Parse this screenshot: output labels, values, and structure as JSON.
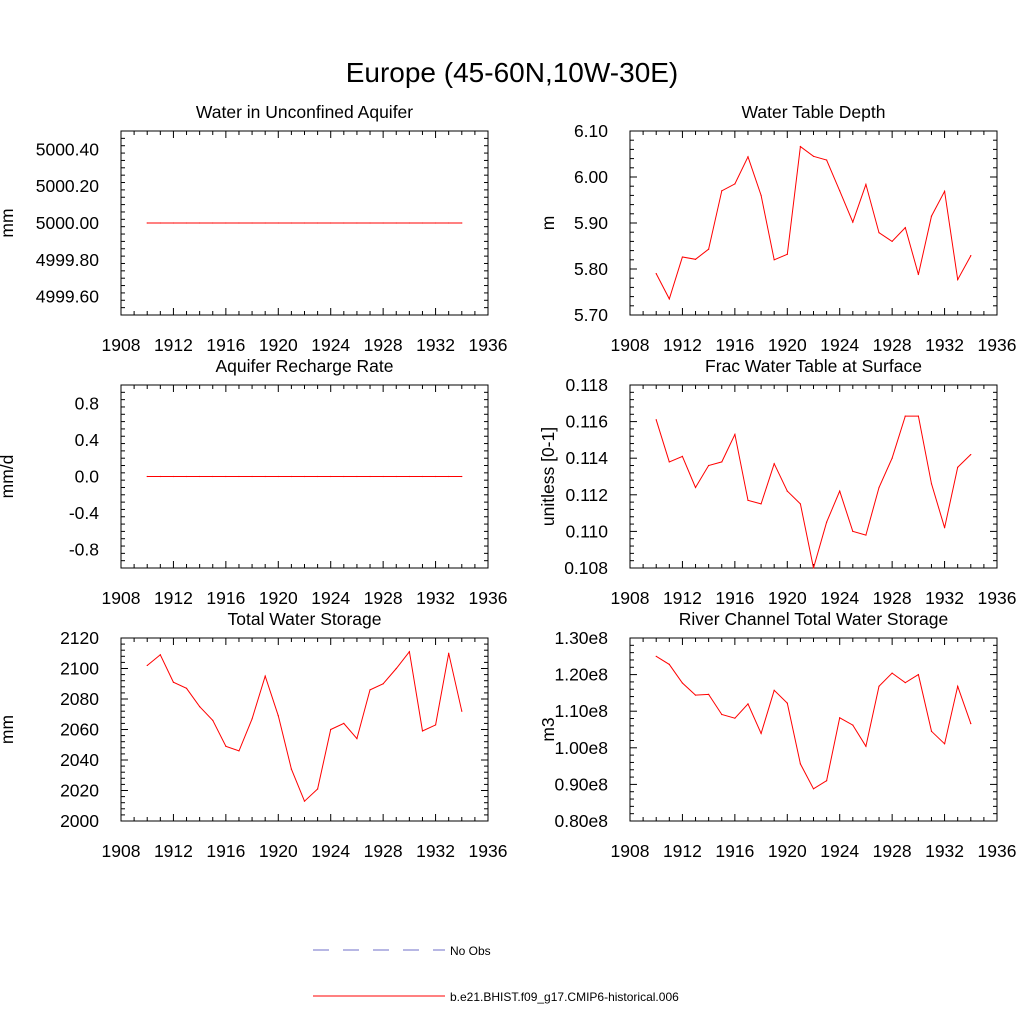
{
  "figure": {
    "title": "Europe (45-60N,10W-30E)"
  },
  "legend": {
    "entries": [
      {
        "label": "No Obs",
        "color": "#6f6fc8",
        "dash": "dashed"
      },
      {
        "label": "b.e21.BHIST.f09_g17.CMIP6-historical.006",
        "color": "#ff0000",
        "dash": "solid"
      }
    ]
  },
  "colors": {
    "series": "#ff0000",
    "axis": "#000000"
  },
  "chart_data": [
    {
      "type": "line",
      "title": "Water in Unconfined Aquifer",
      "xlabel": "",
      "ylabel": "mm",
      "xlim": [
        1908,
        1936
      ],
      "ylim": [
        4999.5,
        5000.5
      ],
      "xticks": [
        1908,
        1912,
        1916,
        1920,
        1924,
        1928,
        1932,
        1936
      ],
      "xtick_labels": [
        "1908",
        "1912",
        "1916",
        "1920",
        "1924",
        "1928",
        "1932",
        "1936"
      ],
      "yticks": [
        4999.6,
        4999.8,
        5000.0,
        5000.2,
        5000.4
      ],
      "ytick_labels": [
        "4999.60",
        "4999.80",
        "5000.00",
        "5000.20",
        "5000.40"
      ],
      "series": [
        {
          "name": "b.e21.BHIST.f09_g17.CMIP6-historical.006",
          "color": "#ff0000",
          "x": [
            1910,
            1911,
            1912,
            1913,
            1914,
            1915,
            1916,
            1917,
            1918,
            1919,
            1920,
            1921,
            1922,
            1923,
            1924,
            1925,
            1926,
            1927,
            1928,
            1929,
            1930,
            1931,
            1932,
            1933,
            1934
          ],
          "y": [
            5000,
            5000,
            5000,
            5000,
            5000,
            5000,
            5000,
            5000,
            5000,
            5000,
            5000,
            5000,
            5000,
            5000,
            5000,
            5000,
            5000,
            5000,
            5000,
            5000,
            5000,
            5000,
            5000,
            5000,
            5000
          ]
        }
      ]
    },
    {
      "type": "line",
      "title": "Water Table Depth",
      "xlabel": "",
      "ylabel": "m",
      "xlim": [
        1908,
        1936
      ],
      "ylim": [
        5.7,
        6.1
      ],
      "xticks": [
        1908,
        1912,
        1916,
        1920,
        1924,
        1928,
        1932,
        1936
      ],
      "xtick_labels": [
        "1908",
        "1912",
        "1916",
        "1920",
        "1924",
        "1928",
        "1932",
        "1936"
      ],
      "yticks": [
        5.7,
        5.8,
        5.9,
        6.0,
        6.1
      ],
      "ytick_labels": [
        "5.70",
        "5.80",
        "5.90",
        "6.00",
        "6.10"
      ],
      "series": [
        {
          "name": "b.e21.BHIST.f09_g17.CMIP6-historical.006",
          "color": "#ff0000",
          "x": [
            1910,
            1911,
            1912,
            1913,
            1914,
            1915,
            1916,
            1917,
            1918,
            1919,
            1920,
            1921,
            1922,
            1923,
            1924,
            1925,
            1926,
            1927,
            1928,
            1929,
            1930,
            1931,
            1932,
            1933,
            1934
          ],
          "y": [
            5.79,
            5.735,
            5.826,
            5.821,
            5.843,
            5.97,
            5.985,
            6.044,
            5.96,
            5.82,
            5.832,
            6.066,
            6.045,
            6.037,
            5.97,
            5.902,
            5.984,
            5.879,
            5.86,
            5.89,
            5.788,
            5.915,
            5.969,
            5.777,
            5.829
          ]
        }
      ]
    },
    {
      "type": "line",
      "title": "Aquifer Recharge Rate",
      "xlabel": "",
      "ylabel": "mm/d",
      "xlim": [
        1908,
        1936
      ],
      "ylim": [
        -1.0,
        1.0
      ],
      "xticks": [
        1908,
        1912,
        1916,
        1920,
        1924,
        1928,
        1932,
        1936
      ],
      "xtick_labels": [
        "1908",
        "1912",
        "1916",
        "1920",
        "1924",
        "1928",
        "1932",
        "1936"
      ],
      "yticks": [
        -0.8,
        -0.4,
        0.0,
        0.4,
        0.8
      ],
      "ytick_labels": [
        "-0.8",
        "-0.4",
        "0.0",
        "0.4",
        "0.8"
      ],
      "series": [
        {
          "name": "b.e21.BHIST.f09_g17.CMIP6-historical.006",
          "color": "#ff0000",
          "x": [
            1910,
            1911,
            1912,
            1913,
            1914,
            1915,
            1916,
            1917,
            1918,
            1919,
            1920,
            1921,
            1922,
            1923,
            1924,
            1925,
            1926,
            1927,
            1928,
            1929,
            1930,
            1931,
            1932,
            1933,
            1934
          ],
          "y": [
            0,
            0,
            0,
            0,
            0,
            0,
            0,
            0,
            0,
            0,
            0,
            0,
            0,
            0,
            0,
            0,
            0,
            0,
            0,
            0,
            0,
            0,
            0,
            0,
            0
          ]
        }
      ]
    },
    {
      "type": "line",
      "title": "Frac Water Table at Surface",
      "xlabel": "",
      "ylabel": "unitless [0-1]",
      "xlim": [
        1908,
        1936
      ],
      "ylim": [
        0.108,
        0.118
      ],
      "xticks": [
        1908,
        1912,
        1916,
        1920,
        1924,
        1928,
        1932,
        1936
      ],
      "xtick_labels": [
        "1908",
        "1912",
        "1916",
        "1920",
        "1924",
        "1928",
        "1932",
        "1936"
      ],
      "yticks": [
        0.108,
        0.11,
        0.112,
        0.114,
        0.116,
        0.118
      ],
      "ytick_labels": [
        "0.108",
        "0.110",
        "0.112",
        "0.114",
        "0.116",
        "0.118"
      ],
      "series": [
        {
          "name": "b.e21.BHIST.f09_g17.CMIP6-historical.006",
          "color": "#ff0000",
          "x": [
            1910,
            1911,
            1912,
            1913,
            1914,
            1915,
            1916,
            1917,
            1918,
            1919,
            1920,
            1921,
            1922,
            1923,
            1924,
            1925,
            1926,
            1927,
            1928,
            1929,
            1930,
            1931,
            1932,
            1933,
            1934
          ],
          "y": [
            0.1161,
            0.1138,
            0.1141,
            0.1124,
            0.1136,
            0.1138,
            0.1153,
            0.1117,
            0.1115,
            0.1137,
            0.1122,
            0.1115,
            0.108,
            0.1105,
            0.1122,
            0.11,
            0.1098,
            0.1124,
            0.114,
            0.1163,
            0.1163,
            0.1126,
            0.1102,
            0.1135,
            0.1142
          ]
        }
      ]
    },
    {
      "type": "line",
      "title": "Total Water Storage",
      "xlabel": "",
      "ylabel": "mm",
      "xlim": [
        1908,
        1936
      ],
      "ylim": [
        2000,
        2120
      ],
      "xticks": [
        1908,
        1912,
        1916,
        1920,
        1924,
        1928,
        1932,
        1936
      ],
      "xtick_labels": [
        "1908",
        "1912",
        "1916",
        "1920",
        "1924",
        "1928",
        "1932",
        "1936"
      ],
      "yticks": [
        2000,
        2020,
        2040,
        2060,
        2080,
        2100,
        2120
      ],
      "ytick_labels": [
        "2000",
        "2020",
        "2040",
        "2060",
        "2080",
        "2100",
        "2120"
      ],
      "series": [
        {
          "name": "b.e21.BHIST.f09_g17.CMIP6-historical.006",
          "color": "#ff0000",
          "x": [
            1910,
            1911,
            1912,
            1913,
            1914,
            1915,
            1916,
            1917,
            1918,
            1919,
            1920,
            1921,
            1922,
            1923,
            1924,
            1925,
            1926,
            1927,
            1928,
            1929,
            1930,
            1931,
            1932,
            1933,
            1934
          ],
          "y": [
            2102,
            2109,
            2091,
            2087,
            2075,
            2066,
            2049,
            2046,
            2067,
            2095,
            2069,
            2034,
            2013,
            2021,
            2060,
            2064,
            2054,
            2086,
            2090,
            2100,
            2111,
            2059,
            2063,
            2110,
            2072
          ]
        }
      ]
    },
    {
      "type": "line",
      "title": "River Channel Total Water Storage",
      "xlabel": "",
      "ylabel": "m3",
      "xlim": [
        1908,
        1936
      ],
      "ylim": [
        80000000.0,
        130000000.0
      ],
      "xticks": [
        1908,
        1912,
        1916,
        1920,
        1924,
        1928,
        1932,
        1936
      ],
      "xtick_labels": [
        "1908",
        "1912",
        "1916",
        "1920",
        "1924",
        "1928",
        "1932",
        "1936"
      ],
      "yticks": [
        80000000.0,
        90000000.0,
        100000000.0,
        110000000.0,
        120000000.0,
        130000000.0
      ],
      "ytick_labels": [
        "0.80e8",
        "0.90e8",
        "1.00e8",
        "1.10e8",
        "1.20e8",
        "1.30e8"
      ],
      "series": [
        {
          "name": "b.e21.BHIST.f09_g17.CMIP6-historical.006",
          "color": "#ff0000",
          "x": [
            1910,
            1911,
            1912,
            1913,
            1914,
            1915,
            1916,
            1917,
            1918,
            1919,
            1920,
            1921,
            1922,
            1923,
            1924,
            1925,
            1926,
            1927,
            1928,
            1929,
            1930,
            1931,
            1932,
            1933,
            1934
          ],
          "y": [
            125000000.0,
            122800000.0,
            117700000.0,
            114400000.0,
            114600000.0,
            109100000.0,
            108100000.0,
            112000000.0,
            103900000.0,
            115700000.0,
            112200000.0,
            95600000.0,
            88800000.0,
            91000000.0,
            108200000.0,
            106200000.0,
            100400000.0,
            116800000.0,
            120400000.0,
            117800000.0,
            120000000.0,
            104500000.0,
            101100000.0,
            116800000.0,
            106600000.0
          ]
        }
      ]
    }
  ]
}
